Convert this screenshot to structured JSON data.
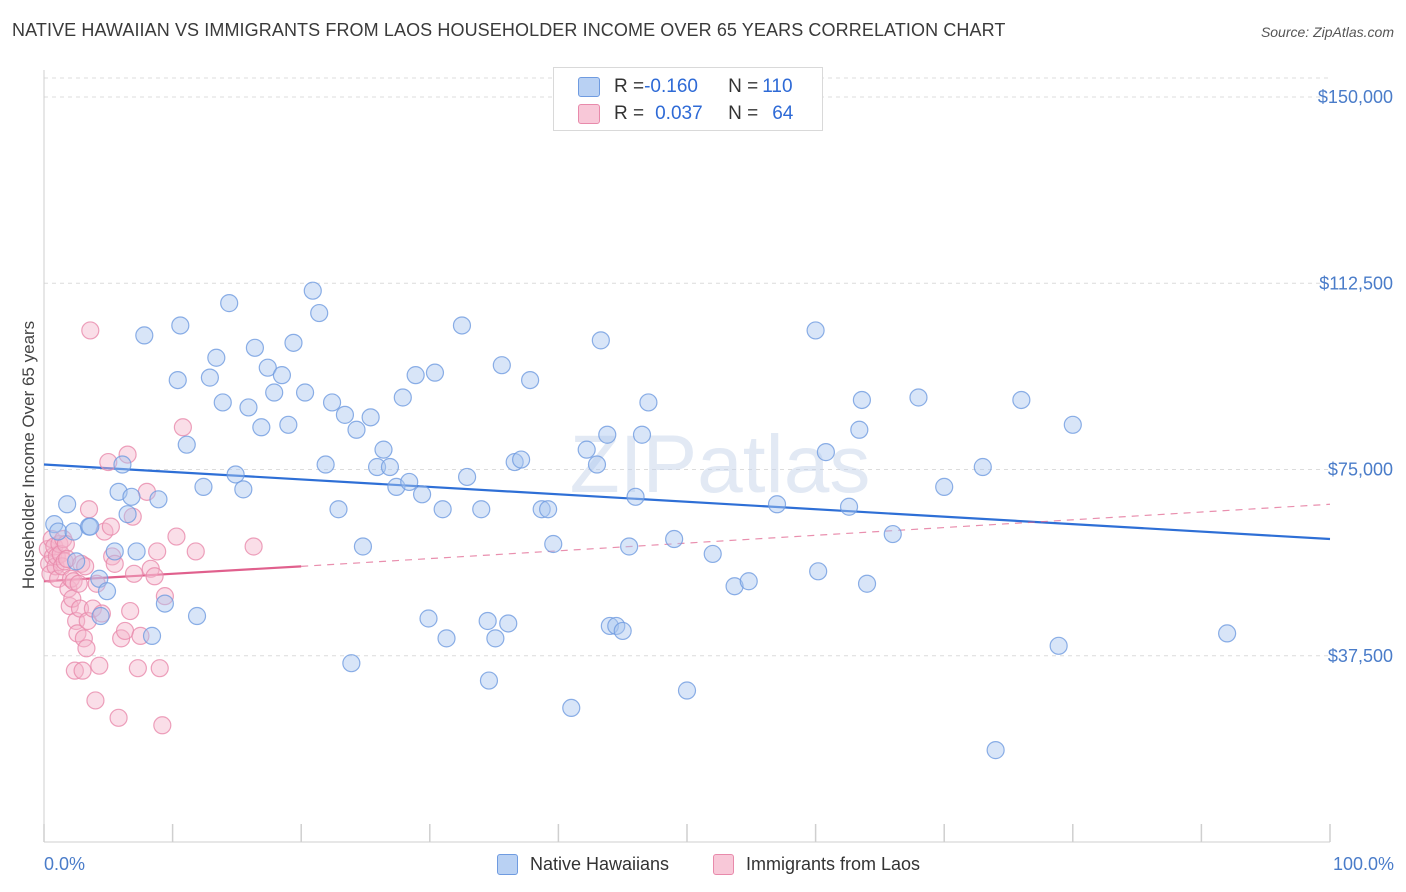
{
  "header": {
    "title": "NATIVE HAWAIIAN VS IMMIGRANTS FROM LAOS HOUSEHOLDER INCOME OVER 65 YEARS CORRELATION CHART",
    "source": "Source: ZipAtlas.com"
  },
  "legend": {
    "row1": {
      "r_label": "R = ",
      "r_value": "-0.160",
      "n_label": "N = ",
      "n_value": "110"
    },
    "row2": {
      "r_label": "R = ",
      "r_value": "0.037",
      "n_label": "N = ",
      "n_value": "64"
    }
  },
  "bottom_legend": {
    "series1": "Native Hawaiians",
    "series2": "Immigrants from Laos"
  },
  "watermark": "ZIPatlas",
  "colors": {
    "blue": "#2e6fd6",
    "blue_fill": "#a9c6ef",
    "pink": "#e0608d",
    "pink_fill": "#f4b6cb",
    "grid": "#dcdcdc"
  },
  "chart_data": {
    "type": "scatter",
    "xlabel": "",
    "ylabel": "Householder Income Over 65 years",
    "xlim": [
      0,
      100
    ],
    "ylim": [
      0,
      150000
    ],
    "x_tick_labels": [
      "0.0%",
      "100.0%"
    ],
    "y_ticks": [
      37500,
      75000,
      112500,
      150000
    ],
    "y_tick_labels": [
      "$37,500",
      "$75,000",
      "$112,500",
      "$150,000"
    ],
    "grid": "horizontal dashed",
    "series": [
      {
        "name": "Native Hawaiians",
        "color": "#2e6fd6",
        "r": -0.16,
        "n": 110,
        "trend": {
          "x": [
            0,
            100
          ],
          "y": [
            76000,
            61000
          ]
        },
        "points": [
          [
            0.8,
            64000
          ],
          [
            1.1,
            62500
          ],
          [
            1.8,
            68000
          ],
          [
            2.3,
            62500
          ],
          [
            2.5,
            56500
          ],
          [
            3.5,
            63500
          ],
          [
            3.6,
            63500
          ],
          [
            4.3,
            53000
          ],
          [
            4.4,
            45500
          ],
          [
            4.9,
            50500
          ],
          [
            5.5,
            58500
          ],
          [
            5.8,
            70500
          ],
          [
            6.1,
            76000
          ],
          [
            6.5,
            66000
          ],
          [
            6.8,
            69500
          ],
          [
            7.2,
            58500
          ],
          [
            7.8,
            102000
          ],
          [
            8.4,
            41500
          ],
          [
            8.9,
            69000
          ],
          [
            9.4,
            48000
          ],
          [
            10.4,
            93000
          ],
          [
            10.6,
            104000
          ],
          [
            11.1,
            80000
          ],
          [
            11.9,
            45500
          ],
          [
            12.4,
            71500
          ],
          [
            12.9,
            93500
          ],
          [
            13.4,
            97500
          ],
          [
            13.9,
            88500
          ],
          [
            14.4,
            108500
          ],
          [
            14.9,
            74000
          ],
          [
            15.5,
            71000
          ],
          [
            15.9,
            87500
          ],
          [
            16.4,
            99500
          ],
          [
            16.9,
            83500
          ],
          [
            17.4,
            95500
          ],
          [
            17.9,
            90500
          ],
          [
            18.5,
            94000
          ],
          [
            19.0,
            84000
          ],
          [
            19.4,
            100500
          ],
          [
            20.3,
            90500
          ],
          [
            20.9,
            111000
          ],
          [
            21.4,
            106500
          ],
          [
            21.9,
            76000
          ],
          [
            22.4,
            88500
          ],
          [
            22.9,
            67000
          ],
          [
            23.4,
            86000
          ],
          [
            23.9,
            36000
          ],
          [
            24.3,
            83000
          ],
          [
            24.8,
            59500
          ],
          [
            25.4,
            85500
          ],
          [
            25.9,
            75500
          ],
          [
            26.4,
            79000
          ],
          [
            26.9,
            75500
          ],
          [
            27.4,
            71500
          ],
          [
            27.9,
            89500
          ],
          [
            28.4,
            72500
          ],
          [
            28.9,
            94000
          ],
          [
            29.4,
            70000
          ],
          [
            29.9,
            45000
          ],
          [
            30.4,
            94500
          ],
          [
            31.0,
            67000
          ],
          [
            31.3,
            41000
          ],
          [
            32.5,
            104000
          ],
          [
            32.9,
            73500
          ],
          [
            34.0,
            67000
          ],
          [
            34.5,
            44500
          ],
          [
            34.6,
            32500
          ],
          [
            35.1,
            41000
          ],
          [
            35.6,
            96000
          ],
          [
            36.1,
            44000
          ],
          [
            36.6,
            76500
          ],
          [
            37.1,
            77000
          ],
          [
            37.8,
            93000
          ],
          [
            38.7,
            67000
          ],
          [
            39.2,
            67000
          ],
          [
            39.6,
            60000
          ],
          [
            41.0,
            27000
          ],
          [
            42.2,
            79000
          ],
          [
            43.0,
            76000
          ],
          [
            43.3,
            101000
          ],
          [
            43.8,
            82000
          ],
          [
            44.0,
            43500
          ],
          [
            44.5,
            43500
          ],
          [
            45.0,
            42500
          ],
          [
            45.5,
            59500
          ],
          [
            46.0,
            69500
          ],
          [
            46.5,
            82000
          ],
          [
            47.0,
            88500
          ],
          [
            49.0,
            61000
          ],
          [
            50.0,
            30500
          ],
          [
            52.0,
            58000
          ],
          [
            53.7,
            51500
          ],
          [
            54.8,
            52500
          ],
          [
            57.0,
            68000
          ],
          [
            60.0,
            103000
          ],
          [
            60.2,
            54500
          ],
          [
            60.8,
            78500
          ],
          [
            62.6,
            67500
          ],
          [
            63.4,
            83000
          ],
          [
            63.6,
            89000
          ],
          [
            64.0,
            52000
          ],
          [
            66.0,
            62000
          ],
          [
            68.0,
            89500
          ],
          [
            70.0,
            71500
          ],
          [
            73.0,
            75500
          ],
          [
            74.0,
            18500
          ],
          [
            76.0,
            89000
          ],
          [
            78.9,
            39500
          ],
          [
            80.0,
            84000
          ],
          [
            92.0,
            42000
          ]
        ]
      },
      {
        "name": "Immigrants from Laos",
        "color": "#e0608d",
        "r": 0.037,
        "n": 64,
        "trend_solid": {
          "x": [
            0,
            20
          ],
          "y": [
            52500,
            55500
          ]
        },
        "trend_dashed": {
          "x": [
            20,
            100
          ],
          "y": [
            55500,
            68000
          ]
        },
        "points": [
          [
            0.3,
            59000
          ],
          [
            0.4,
            56000
          ],
          [
            0.5,
            54000
          ],
          [
            0.6,
            61000
          ],
          [
            0.7,
            57500
          ],
          [
            0.8,
            59500
          ],
          [
            0.9,
            55500
          ],
          [
            1.0,
            57500
          ],
          [
            1.1,
            53000
          ],
          [
            1.2,
            60000
          ],
          [
            1.3,
            58000
          ],
          [
            1.4,
            55500
          ],
          [
            1.5,
            61000
          ],
          [
            1.6,
            56500
          ],
          [
            1.7,
            60000
          ],
          [
            1.8,
            57000
          ],
          [
            1.9,
            51000
          ],
          [
            2.0,
            47500
          ],
          [
            2.1,
            53000
          ],
          [
            2.2,
            49000
          ],
          [
            2.3,
            52500
          ],
          [
            2.4,
            34500
          ],
          [
            2.5,
            44500
          ],
          [
            2.6,
            42000
          ],
          [
            2.7,
            52000
          ],
          [
            2.8,
            47000
          ],
          [
            2.9,
            56000
          ],
          [
            3.0,
            34500
          ],
          [
            3.1,
            41000
          ],
          [
            3.2,
            55500
          ],
          [
            3.3,
            39000
          ],
          [
            3.4,
            44500
          ],
          [
            3.5,
            67000
          ],
          [
            3.6,
            103000
          ],
          [
            3.8,
            47000
          ],
          [
            4.0,
            28500
          ],
          [
            4.1,
            52000
          ],
          [
            4.3,
            35500
          ],
          [
            4.5,
            46000
          ],
          [
            4.7,
            62500
          ],
          [
            5.0,
            76500
          ],
          [
            5.2,
            63500
          ],
          [
            5.3,
            57500
          ],
          [
            5.5,
            56000
          ],
          [
            5.8,
            25000
          ],
          [
            6.0,
            41000
          ],
          [
            6.3,
            42500
          ],
          [
            6.5,
            78000
          ],
          [
            6.7,
            46500
          ],
          [
            6.9,
            65500
          ],
          [
            7.0,
            54000
          ],
          [
            7.3,
            35000
          ],
          [
            7.5,
            41500
          ],
          [
            8.0,
            70500
          ],
          [
            8.3,
            55000
          ],
          [
            8.6,
            53500
          ],
          [
            8.8,
            58500
          ],
          [
            9.0,
            35000
          ],
          [
            9.2,
            23500
          ],
          [
            9.4,
            49500
          ],
          [
            10.3,
            61500
          ],
          [
            10.8,
            83500
          ],
          [
            11.8,
            58500
          ],
          [
            16.3,
            59500
          ]
        ]
      }
    ]
  }
}
